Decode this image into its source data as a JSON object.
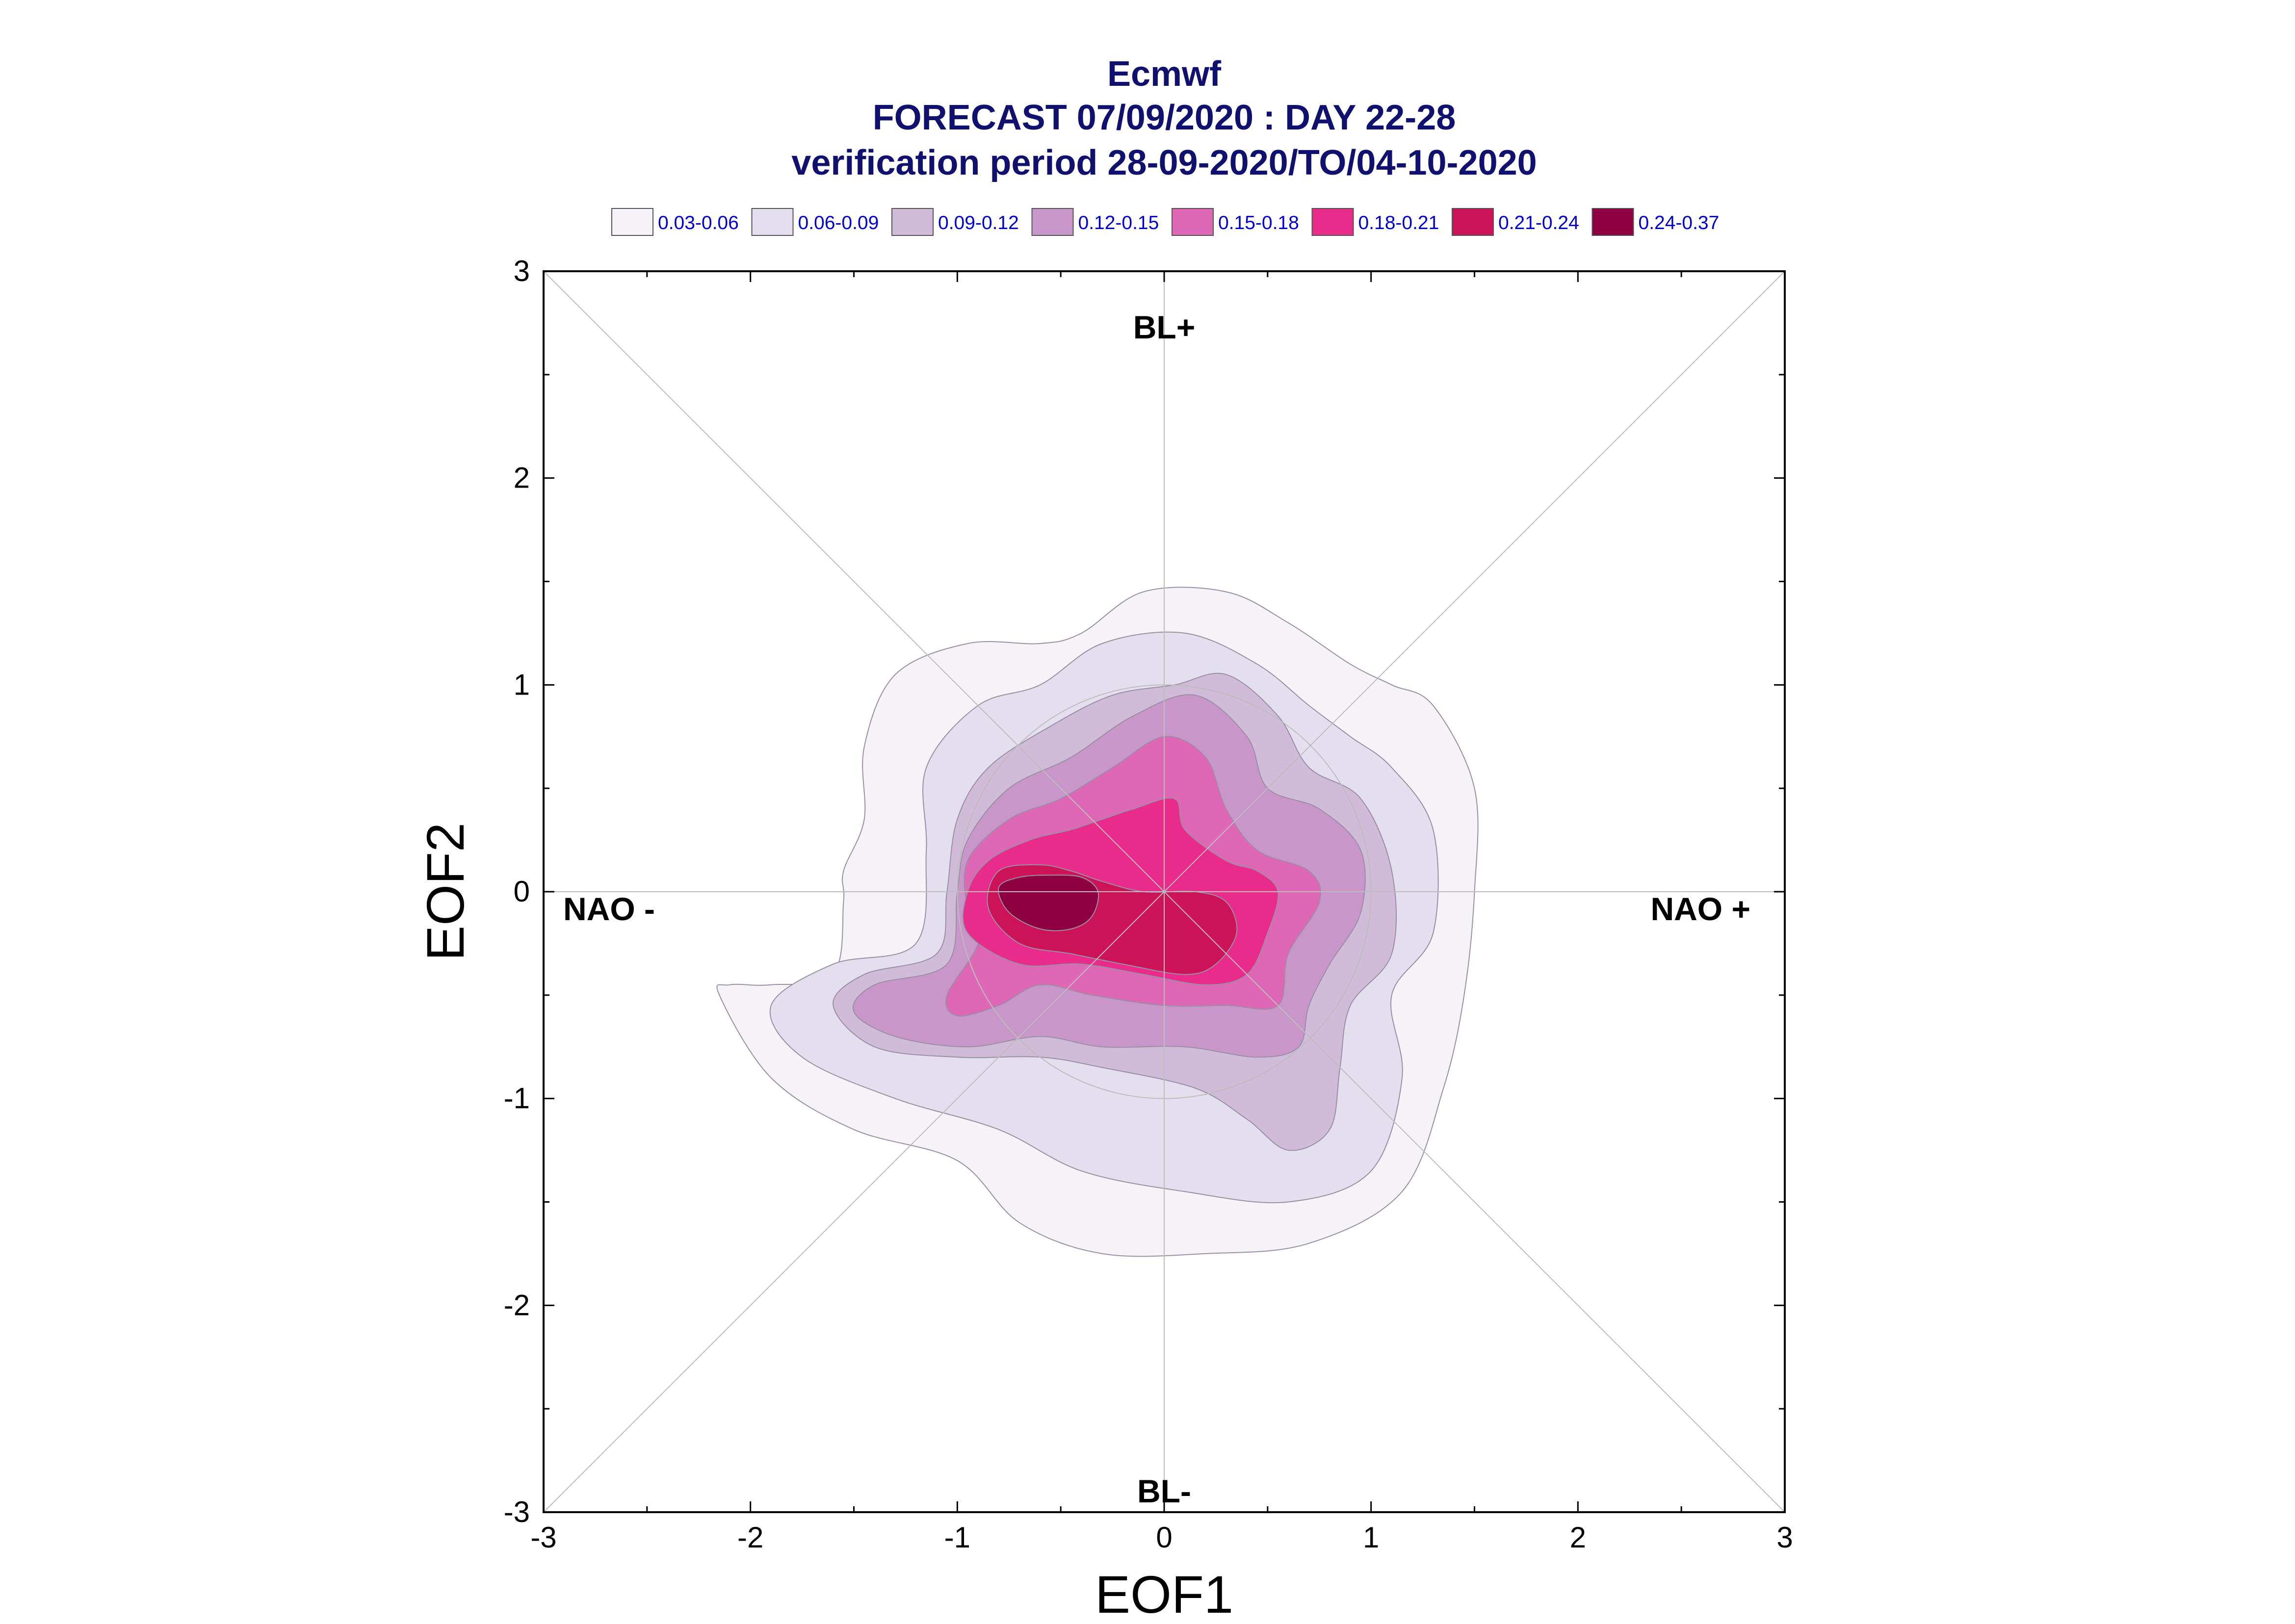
{
  "chart_data": {
    "type": "contour",
    "title_lines": [
      "Ecmwf",
      "FORECAST 07/09/2020 : DAY 22-28",
      "verification period 28-09-2020/TO/04-10-2020"
    ],
    "xlabel": "EOF1",
    "ylabel": "EOF2",
    "xlim": [
      -3,
      3
    ],
    "ylim": [
      -3,
      3
    ],
    "x_ticks": [
      "-3",
      "-2",
      "-1",
      "0",
      "1",
      "2",
      "3"
    ],
    "y_ticks": [
      "3",
      "2",
      "1",
      "0",
      "-1",
      "-2",
      "-3"
    ],
    "grid": false,
    "reference_lines": [
      "diagonals",
      "axes through origin",
      "unit circle"
    ],
    "regions": {
      "top": "BL+",
      "bottom": "BL-",
      "left": "NAO -",
      "right": "NAO +"
    },
    "legend": [
      {
        "label": "0.03-0.06",
        "color": "#f5f3f8"
      },
      {
        "label": "0.06-0.09",
        "color": "#e4dfee"
      },
      {
        "label": "0.09-0.12",
        "color": "#d0bbd9"
      },
      {
        "label": "0.12-0.15",
        "color": "#c996c9"
      },
      {
        "label": "0.15-0.18",
        "color": "#df68b6"
      },
      {
        "label": "0.18-0.21",
        "color": "#e92b8c"
      },
      {
        "label": "0.21-0.24",
        "color": "#cd1358"
      },
      {
        "label": "0.24-0.37",
        "color": "#8e0042"
      }
    ],
    "contour_levels": [
      {
        "level": "0.03-0.06",
        "points": [
          [
            -1.6,
            -0.4
          ],
          [
            -1.9,
            -0.45
          ],
          [
            -2.1,
            -0.45
          ],
          [
            -2.15,
            -0.5
          ],
          [
            -1.9,
            -0.9
          ],
          [
            -1.5,
            -1.15
          ],
          [
            -1.0,
            -1.3
          ],
          [
            -0.7,
            -1.6
          ],
          [
            -0.3,
            -1.75
          ],
          [
            0.2,
            -1.75
          ],
          [
            0.7,
            -1.7
          ],
          [
            1.15,
            -1.45
          ],
          [
            1.35,
            -0.95
          ],
          [
            1.45,
            -0.5
          ],
          [
            1.5,
            0
          ],
          [
            1.5,
            0.5
          ],
          [
            1.3,
            0.9
          ],
          [
            1.1,
            1.0
          ],
          [
            0.9,
            1.1
          ],
          [
            0.6,
            1.3
          ],
          [
            0.3,
            1.45
          ],
          [
            -0.1,
            1.45
          ],
          [
            -0.4,
            1.25
          ],
          [
            -0.6,
            1.2
          ],
          [
            -0.95,
            1.2
          ],
          [
            -1.3,
            1.05
          ],
          [
            -1.45,
            0.7
          ],
          [
            -1.45,
            0.35
          ],
          [
            -1.55,
            0.1
          ],
          [
            -1.55,
            -0.05
          ]
        ]
      },
      {
        "level": "0.06-0.09",
        "points": [
          [
            -1.2,
            -0.25
          ],
          [
            -1.6,
            -0.35
          ],
          [
            -1.9,
            -0.55
          ],
          [
            -1.75,
            -0.8
          ],
          [
            -1.3,
            -1.0
          ],
          [
            -0.8,
            -1.15
          ],
          [
            -0.4,
            -1.35
          ],
          [
            0.1,
            -1.45
          ],
          [
            0.6,
            -1.5
          ],
          [
            1.0,
            -1.35
          ],
          [
            1.15,
            -0.9
          ],
          [
            1.1,
            -0.5
          ],
          [
            1.3,
            -0.2
          ],
          [
            1.3,
            0.3
          ],
          [
            1.1,
            0.6
          ],
          [
            0.9,
            0.75
          ],
          [
            0.7,
            0.9
          ],
          [
            0.45,
            1.1
          ],
          [
            0.1,
            1.25
          ],
          [
            -0.3,
            1.2
          ],
          [
            -0.6,
            1.0
          ],
          [
            -0.9,
            0.9
          ],
          [
            -1.15,
            0.6
          ],
          [
            -1.15,
            0.2
          ]
        ]
      },
      {
        "level": "0.09-0.12",
        "points": [
          [
            -1.1,
            -0.3
          ],
          [
            -1.45,
            -0.4
          ],
          [
            -1.6,
            -0.55
          ],
          [
            -1.4,
            -0.75
          ],
          [
            -1.0,
            -0.8
          ],
          [
            -0.6,
            -0.8
          ],
          [
            -0.3,
            -0.85
          ],
          [
            0.15,
            -0.95
          ],
          [
            0.4,
            -1.1
          ],
          [
            0.6,
            -1.25
          ],
          [
            0.8,
            -1.15
          ],
          [
            0.85,
            -0.85
          ],
          [
            0.9,
            -0.55
          ],
          [
            1.1,
            -0.3
          ],
          [
            1.1,
            0.1
          ],
          [
            0.95,
            0.45
          ],
          [
            0.7,
            0.6
          ],
          [
            0.55,
            0.85
          ],
          [
            0.3,
            1.05
          ],
          [
            0.05,
            1.0
          ],
          [
            -0.25,
            0.95
          ],
          [
            -0.55,
            0.8
          ],
          [
            -0.85,
            0.6
          ],
          [
            -1.0,
            0.35
          ],
          [
            -1.05,
            0.0
          ]
        ]
      },
      {
        "level": "0.12-0.15",
        "points": [
          [
            -1.05,
            -0.35
          ],
          [
            -1.4,
            -0.45
          ],
          [
            -1.5,
            -0.58
          ],
          [
            -1.3,
            -0.7
          ],
          [
            -0.95,
            -0.75
          ],
          [
            -0.6,
            -0.7
          ],
          [
            -0.3,
            -0.75
          ],
          [
            0.1,
            -0.75
          ],
          [
            0.45,
            -0.8
          ],
          [
            0.65,
            -0.75
          ],
          [
            0.7,
            -0.55
          ],
          [
            0.8,
            -0.35
          ],
          [
            0.95,
            -0.1
          ],
          [
            0.95,
            0.2
          ],
          [
            0.75,
            0.4
          ],
          [
            0.5,
            0.5
          ],
          [
            0.4,
            0.75
          ],
          [
            0.15,
            0.95
          ],
          [
            -0.15,
            0.85
          ],
          [
            -0.45,
            0.65
          ],
          [
            -0.75,
            0.5
          ],
          [
            -0.95,
            0.25
          ],
          [
            -1.0,
            0.0
          ]
        ]
      },
      {
        "level": "0.15-0.18",
        "points": [
          [
            -0.9,
            -0.25
          ],
          [
            -1.05,
            -0.5
          ],
          [
            -1.0,
            -0.6
          ],
          [
            -0.8,
            -0.55
          ],
          [
            -0.6,
            -0.45
          ],
          [
            -0.35,
            -0.5
          ],
          [
            0.0,
            -0.55
          ],
          [
            0.3,
            -0.55
          ],
          [
            0.55,
            -0.55
          ],
          [
            0.6,
            -0.3
          ],
          [
            0.75,
            -0.05
          ],
          [
            0.7,
            0.1
          ],
          [
            0.45,
            0.2
          ],
          [
            0.3,
            0.4
          ],
          [
            0.2,
            0.65
          ],
          [
            0.0,
            0.75
          ],
          [
            -0.25,
            0.6
          ],
          [
            -0.5,
            0.45
          ],
          [
            -0.75,
            0.35
          ],
          [
            -0.95,
            0.15
          ],
          [
            -0.95,
            -0.1
          ]
        ]
      },
      {
        "level": "0.18-0.21",
        "points": [
          [
            -0.95,
            -0.2
          ],
          [
            -0.7,
            -0.35
          ],
          [
            -0.4,
            -0.35
          ],
          [
            -0.1,
            -0.4
          ],
          [
            0.2,
            -0.45
          ],
          [
            0.4,
            -0.4
          ],
          [
            0.5,
            -0.2
          ],
          [
            0.55,
            0.0
          ],
          [
            0.45,
            0.1
          ],
          [
            0.3,
            0.15
          ],
          [
            0.1,
            0.3
          ],
          [
            0.05,
            0.45
          ],
          [
            -0.15,
            0.4
          ],
          [
            -0.3,
            0.35
          ],
          [
            -0.45,
            0.3
          ],
          [
            -0.65,
            0.25
          ],
          [
            -0.85,
            0.15
          ],
          [
            -0.95,
            0.0
          ]
        ]
      },
      {
        "level": "0.21-0.24",
        "points": [
          [
            -0.85,
            -0.08
          ],
          [
            -0.7,
            -0.25
          ],
          [
            -0.45,
            -0.3
          ],
          [
            -0.2,
            -0.35
          ],
          [
            0.1,
            -0.4
          ],
          [
            0.25,
            -0.35
          ],
          [
            0.35,
            -0.2
          ],
          [
            0.3,
            -0.05
          ],
          [
            0.15,
            0.0
          ],
          [
            -0.1,
            0.0
          ],
          [
            -0.3,
            0.05
          ],
          [
            -0.45,
            0.1
          ],
          [
            -0.6,
            0.13
          ],
          [
            -0.8,
            0.1
          ]
        ]
      },
      {
        "level": "0.24-0.37",
        "points": [
          [
            -0.8,
            0.02
          ],
          [
            -0.75,
            -0.1
          ],
          [
            -0.6,
            -0.18
          ],
          [
            -0.45,
            -0.18
          ],
          [
            -0.35,
            -0.12
          ],
          [
            -0.32,
            0.0
          ],
          [
            -0.4,
            0.07
          ],
          [
            -0.55,
            0.08
          ],
          [
            -0.7,
            0.07
          ]
        ]
      }
    ]
  }
}
